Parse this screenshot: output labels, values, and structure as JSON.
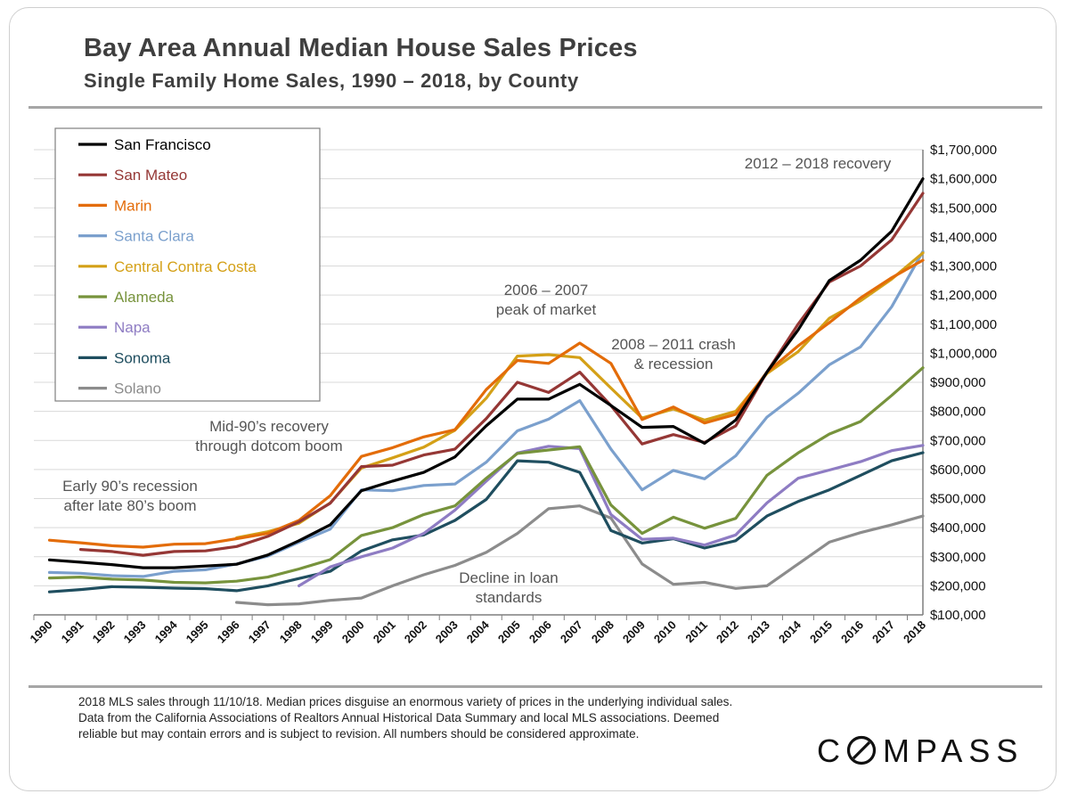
{
  "header": {
    "title": "Bay Area Annual Median House Sales Prices",
    "subtitle": "Single Family Home Sales, 1990 – 2018, by County"
  },
  "footnote": "2018 MLS sales through 11/10/18. Median prices disguise an enormous variety of prices in the underlying individual sales. Data from the California Associations of Realtors Annual Historical Data Summary and local MLS associations.  Deemed reliable but may contain errors and is subject to revision. All numbers should be considered approximate.",
  "logo": {
    "before": "C",
    "after": "MPASS",
    "mark": "compass-o-logo"
  },
  "chart_data": {
    "type": "line",
    "title": "Bay Area Annual Median House Sales Prices",
    "subtitle": "Single Family Home Sales, 1990 – 2018, by County",
    "xlabel": "",
    "ylabel": "",
    "y_axis_side": "right",
    "grid": true,
    "legend_position": "top-left",
    "ylim": [
      100000,
      1700000
    ],
    "ytick_step": 100000,
    "ytick_labels": [
      "$100,000",
      "$200,000",
      "$300,000",
      "$400,000",
      "$500,000",
      "$600,000",
      "$700,000",
      "$800,000",
      "$900,000",
      "$1,000,000",
      "$1,100,000",
      "$1,200,000",
      "$1,300,000",
      "$1,400,000",
      "$1,500,000",
      "$1,600,000",
      "$1,700,000"
    ],
    "x": [
      "1990",
      "1991",
      "1992",
      "1993",
      "1994",
      "1995",
      "1996",
      "1997",
      "1998",
      "1999",
      "2000",
      "2001",
      "2002",
      "2003",
      "2004",
      "2005",
      "2006",
      "2007",
      "2008",
      "2009",
      "2010",
      "2011",
      "2012",
      "2013",
      "2014",
      "2015",
      "2016",
      "2017",
      "2018"
    ],
    "series": [
      {
        "name": "San Francisco",
        "color": "#000000",
        "values": [
          289000,
          281000,
          273000,
          262000,
          262000,
          268000,
          274000,
          306000,
          355000,
          410000,
          527000,
          560000,
          590000,
          643000,
          750000,
          842000,
          842000,
          893000,
          820000,
          745000,
          748000,
          690000,
          770000,
          935000,
          1080000,
          1250000,
          1320000,
          1420000,
          1600000
        ]
      },
      {
        "name": "San Mateo",
        "color": "#953735",
        "values": [
          null,
          325000,
          318000,
          305000,
          318000,
          320000,
          335000,
          370000,
          420000,
          484000,
          610000,
          615000,
          650000,
          670000,
          775000,
          900000,
          865000,
          935000,
          820000,
          688000,
          720000,
          693000,
          750000,
          935000,
          1100000,
          1245000,
          1300000,
          1390000,
          1550000
        ]
      },
      {
        "name": "Marin",
        "color": "#E36C09",
        "values": [
          357000,
          348000,
          338000,
          333000,
          343000,
          345000,
          362000,
          380000,
          425000,
          510000,
          645000,
          675000,
          712000,
          737000,
          875000,
          975000,
          965000,
          1035000,
          965000,
          772000,
          815000,
          760000,
          790000,
          935000,
          1025000,
          1105000,
          1190000,
          1260000,
          1320000
        ]
      },
      {
        "name": "Santa Clara",
        "color": "#7BA0CD",
        "values": [
          246000,
          243000,
          235000,
          232000,
          250000,
          255000,
          275000,
          302000,
          350000,
          395000,
          530000,
          527000,
          545000,
          550000,
          625000,
          733000,
          773000,
          837000,
          670000,
          530000,
          597000,
          568000,
          647000,
          780000,
          862000,
          960000,
          1022000,
          1160000,
          1350000
        ]
      },
      {
        "name": "Central Contra Costa",
        "color": "#D4A017",
        "values": [
          null,
          null,
          null,
          null,
          null,
          null,
          365000,
          386000,
          415000,
          485000,
          605000,
          640000,
          677000,
          735000,
          845000,
          990000,
          995000,
          985000,
          880000,
          777000,
          808000,
          770000,
          800000,
          930000,
          1005000,
          1120000,
          1180000,
          1255000,
          1345000
        ]
      },
      {
        "name": "Alameda",
        "color": "#77933C",
        "values": [
          227000,
          230000,
          223000,
          220000,
          212000,
          210000,
          216000,
          230000,
          258000,
          290000,
          373000,
          400000,
          445000,
          475000,
          570000,
          655000,
          667000,
          678000,
          478000,
          380000,
          436000,
          398000,
          432000,
          580000,
          657000,
          722000,
          765000,
          855000,
          950000
        ]
      },
      {
        "name": "Napa",
        "color": "#8E7CC3",
        "values": [
          null,
          null,
          null,
          null,
          null,
          null,
          null,
          null,
          200000,
          265000,
          300000,
          330000,
          380000,
          460000,
          560000,
          657000,
          680000,
          672000,
          445000,
          360000,
          364000,
          340000,
          375000,
          485000,
          570000,
          598000,
          627000,
          665000,
          683000
        ]
      },
      {
        "name": "Sonoma",
        "color": "#1F4E5F",
        "values": [
          179000,
          187000,
          197000,
          195000,
          192000,
          190000,
          183000,
          200000,
          225000,
          250000,
          320000,
          358000,
          375000,
          425000,
          497000,
          630000,
          625000,
          590000,
          390000,
          347000,
          362000,
          330000,
          355000,
          440000,
          490000,
          530000,
          580000,
          630000,
          658000
        ]
      },
      {
        "name": "Solano",
        "color": "#8C8C8C",
        "values": [
          null,
          null,
          null,
          null,
          null,
          null,
          143000,
          135000,
          138000,
          150000,
          158000,
          200000,
          238000,
          270000,
          315000,
          380000,
          465000,
          475000,
          433000,
          275000,
          205000,
          212000,
          191000,
          200000,
          275000,
          350000,
          383000,
          410000,
          440000
        ]
      }
    ],
    "annotations": [
      {
        "lines": [
          "2012 – 2018 recovery"
        ],
        "near": "2013-2018 top"
      },
      {
        "lines": [
          "2006 – 2007",
          "peak of market"
        ],
        "near": "2006"
      },
      {
        "lines": [
          "2008 – 2011 crash",
          "& recession"
        ],
        "near": "2009-2011"
      },
      {
        "lines": [
          "Mid-90’s recovery",
          "through dotcom boom"
        ],
        "near": "1996-2000"
      },
      {
        "lines": [
          "Early 90’s recession",
          "after late 80’s boom"
        ],
        "near": "1990-1995"
      },
      {
        "lines": [
          "Decline in loan",
          "standards"
        ],
        "near": "2004-2007"
      }
    ]
  }
}
